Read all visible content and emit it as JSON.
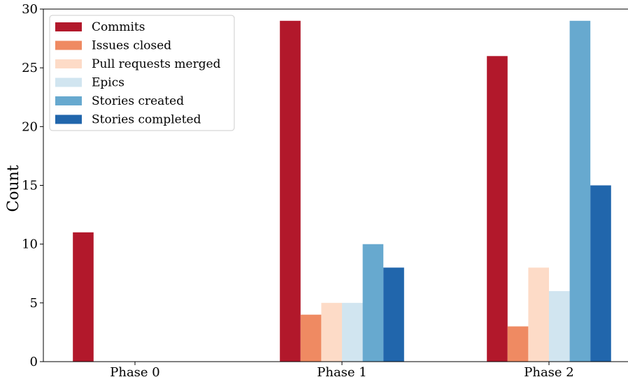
{
  "chart_data": {
    "type": "bar",
    "categories": [
      "Phase 0",
      "Phase 1",
      "Phase 2"
    ],
    "ylabel": "Count",
    "xlabel": "",
    "title": "",
    "ylim": [
      0,
      30
    ],
    "yticks": [
      "0",
      "5",
      "10",
      "15",
      "20",
      "25",
      "30"
    ],
    "grid": false,
    "legend_position": "top-left",
    "series": [
      {
        "name": "Commits",
        "color": "#b2182b",
        "values": [
          11,
          29,
          26
        ]
      },
      {
        "name": "Issues closed",
        "color": "#ef8a62",
        "values": [
          0,
          4,
          3
        ]
      },
      {
        "name": "Pull requests merged",
        "color": "#fddbc7",
        "values": [
          0,
          5,
          8
        ]
      },
      {
        "name": "Epics",
        "color": "#d1e5f0",
        "values": [
          0,
          5,
          6
        ]
      },
      {
        "name": "Stories created",
        "color": "#67a9cf",
        "values": [
          0,
          10,
          29
        ]
      },
      {
        "name": "Stories completed",
        "color": "#2166ac",
        "values": [
          0,
          8,
          15
        ]
      }
    ]
  }
}
